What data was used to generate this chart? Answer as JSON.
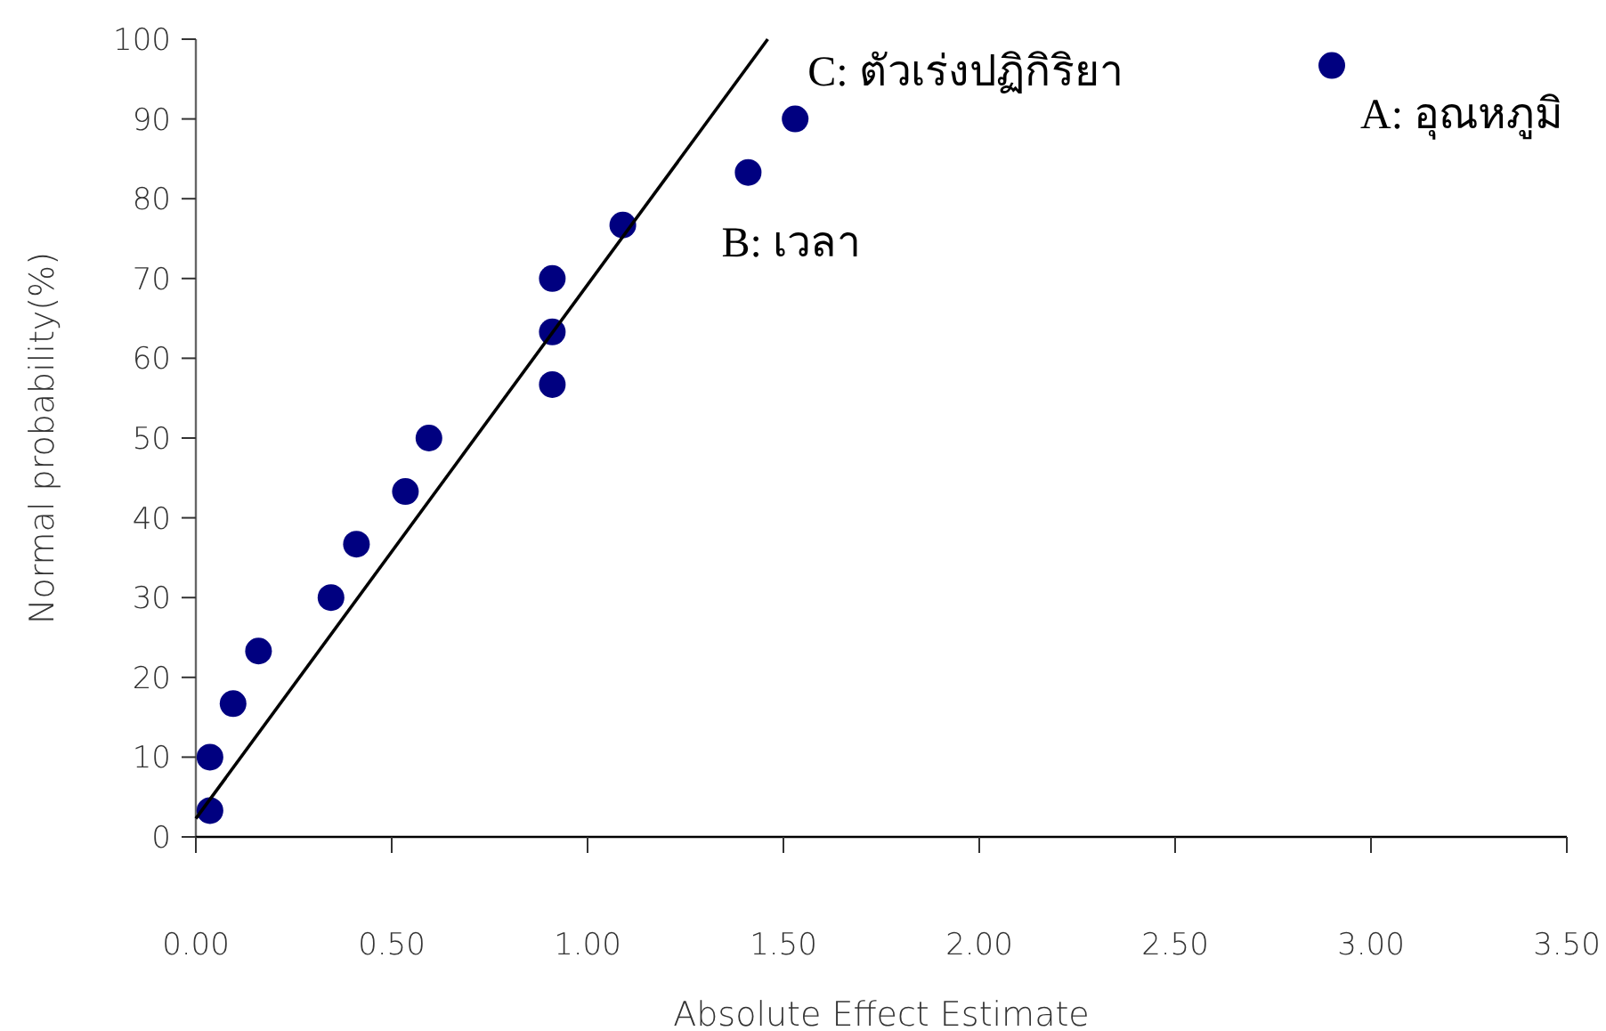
{
  "chart_data": {
    "type": "scatter",
    "xlabel": "Absolute Effect Estimate",
    "ylabel": "Normal probability(%)",
    "xlim": [
      0,
      3.5
    ],
    "xticks": [
      {
        "value": 0,
        "label": "0.00"
      },
      {
        "value": 0.5,
        "label": "0.50"
      },
      {
        "value": 1,
        "label": "1.00"
      },
      {
        "value": 1.5,
        "label": "1.50"
      },
      {
        "value": 2,
        "label": "2.00"
      },
      {
        "value": 2.5,
        "label": "2.50"
      },
      {
        "value": 3,
        "label": "3.00"
      },
      {
        "value": 3.5,
        "label": "3.50"
      }
    ],
    "ylim": [
      0,
      100
    ],
    "yticks": [
      0,
      10,
      20,
      30,
      40,
      50,
      60,
      70,
      80,
      90,
      100
    ],
    "marker": "circle",
    "grid": false,
    "series": [
      {
        "type": "scatter",
        "color": "#000080",
        "x": [
          0.036,
          0.036,
          0.095,
          0.16,
          0.345,
          0.41,
          0.535,
          0.595,
          0.91,
          0.91,
          0.91,
          1.09,
          1.41,
          1.53,
          2.9
        ],
        "values": [
          3.3,
          10,
          16.7,
          23.3,
          30,
          36.7,
          43.3,
          50,
          56.7,
          63.3,
          70,
          76.7,
          83.3,
          90,
          96.7
        ]
      },
      {
        "type": "line",
        "color": "#000000",
        "marker": "none",
        "x": [
          0,
          1.46
        ],
        "values": [
          2.3,
          100
        ]
      }
    ],
    "annotations": [
      {
        "text": "C: ตัวเร่งปฏิกิริยา",
        "x": 1.53,
        "y": 90
      },
      {
        "text": "A: อุณหภูมิ",
        "x": 2.9,
        "y": 96.7
      },
      {
        "text": "B: เวลา",
        "x": 1.41,
        "y": 83.3
      }
    ]
  }
}
